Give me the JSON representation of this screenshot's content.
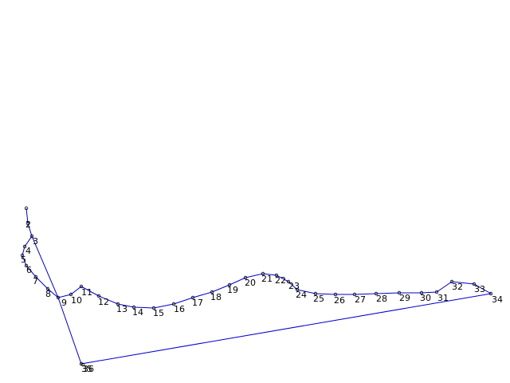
{
  "diagram": {
    "line_color": "#0000cc",
    "marker_color": "#000000",
    "label_color": "#000000",
    "nodes": [
      {
        "id": "1",
        "label": ""
      },
      {
        "id": "2",
        "label": "2"
      },
      {
        "id": "3",
        "label": "3"
      },
      {
        "id": "4",
        "label": "4"
      },
      {
        "id": "5",
        "label": "5"
      },
      {
        "id": "6",
        "label": "6"
      },
      {
        "id": "7",
        "label": "7"
      },
      {
        "id": "8",
        "label": "8"
      },
      {
        "id": "9",
        "label": "9"
      },
      {
        "id": "10",
        "label": "10"
      },
      {
        "id": "11",
        "label": "11"
      },
      {
        "id": "12",
        "label": "12"
      },
      {
        "id": "13",
        "label": "13"
      },
      {
        "id": "14",
        "label": "14"
      },
      {
        "id": "15",
        "label": "15"
      },
      {
        "id": "16",
        "label": "16"
      },
      {
        "id": "17",
        "label": "17"
      },
      {
        "id": "18",
        "label": "18"
      },
      {
        "id": "19",
        "label": "19"
      },
      {
        "id": "20",
        "label": "20"
      },
      {
        "id": "21",
        "label": "21"
      },
      {
        "id": "22",
        "label": "22"
      },
      {
        "id": "23",
        "label": "23"
      },
      {
        "id": "24",
        "label": "24"
      },
      {
        "id": "25",
        "label": "25"
      },
      {
        "id": "26",
        "label": "26"
      },
      {
        "id": "27",
        "label": "27"
      },
      {
        "id": "28",
        "label": "28"
      },
      {
        "id": "29",
        "label": "29"
      },
      {
        "id": "30",
        "label": "30"
      },
      {
        "id": "31",
        "label": "31"
      },
      {
        "id": "32",
        "label": "32"
      },
      {
        "id": "33",
        "label": "33"
      },
      {
        "id": "34",
        "label": "34"
      },
      {
        "id": "35",
        "label": "35"
      },
      {
        "id": "36",
        "label": "36"
      }
    ]
  }
}
